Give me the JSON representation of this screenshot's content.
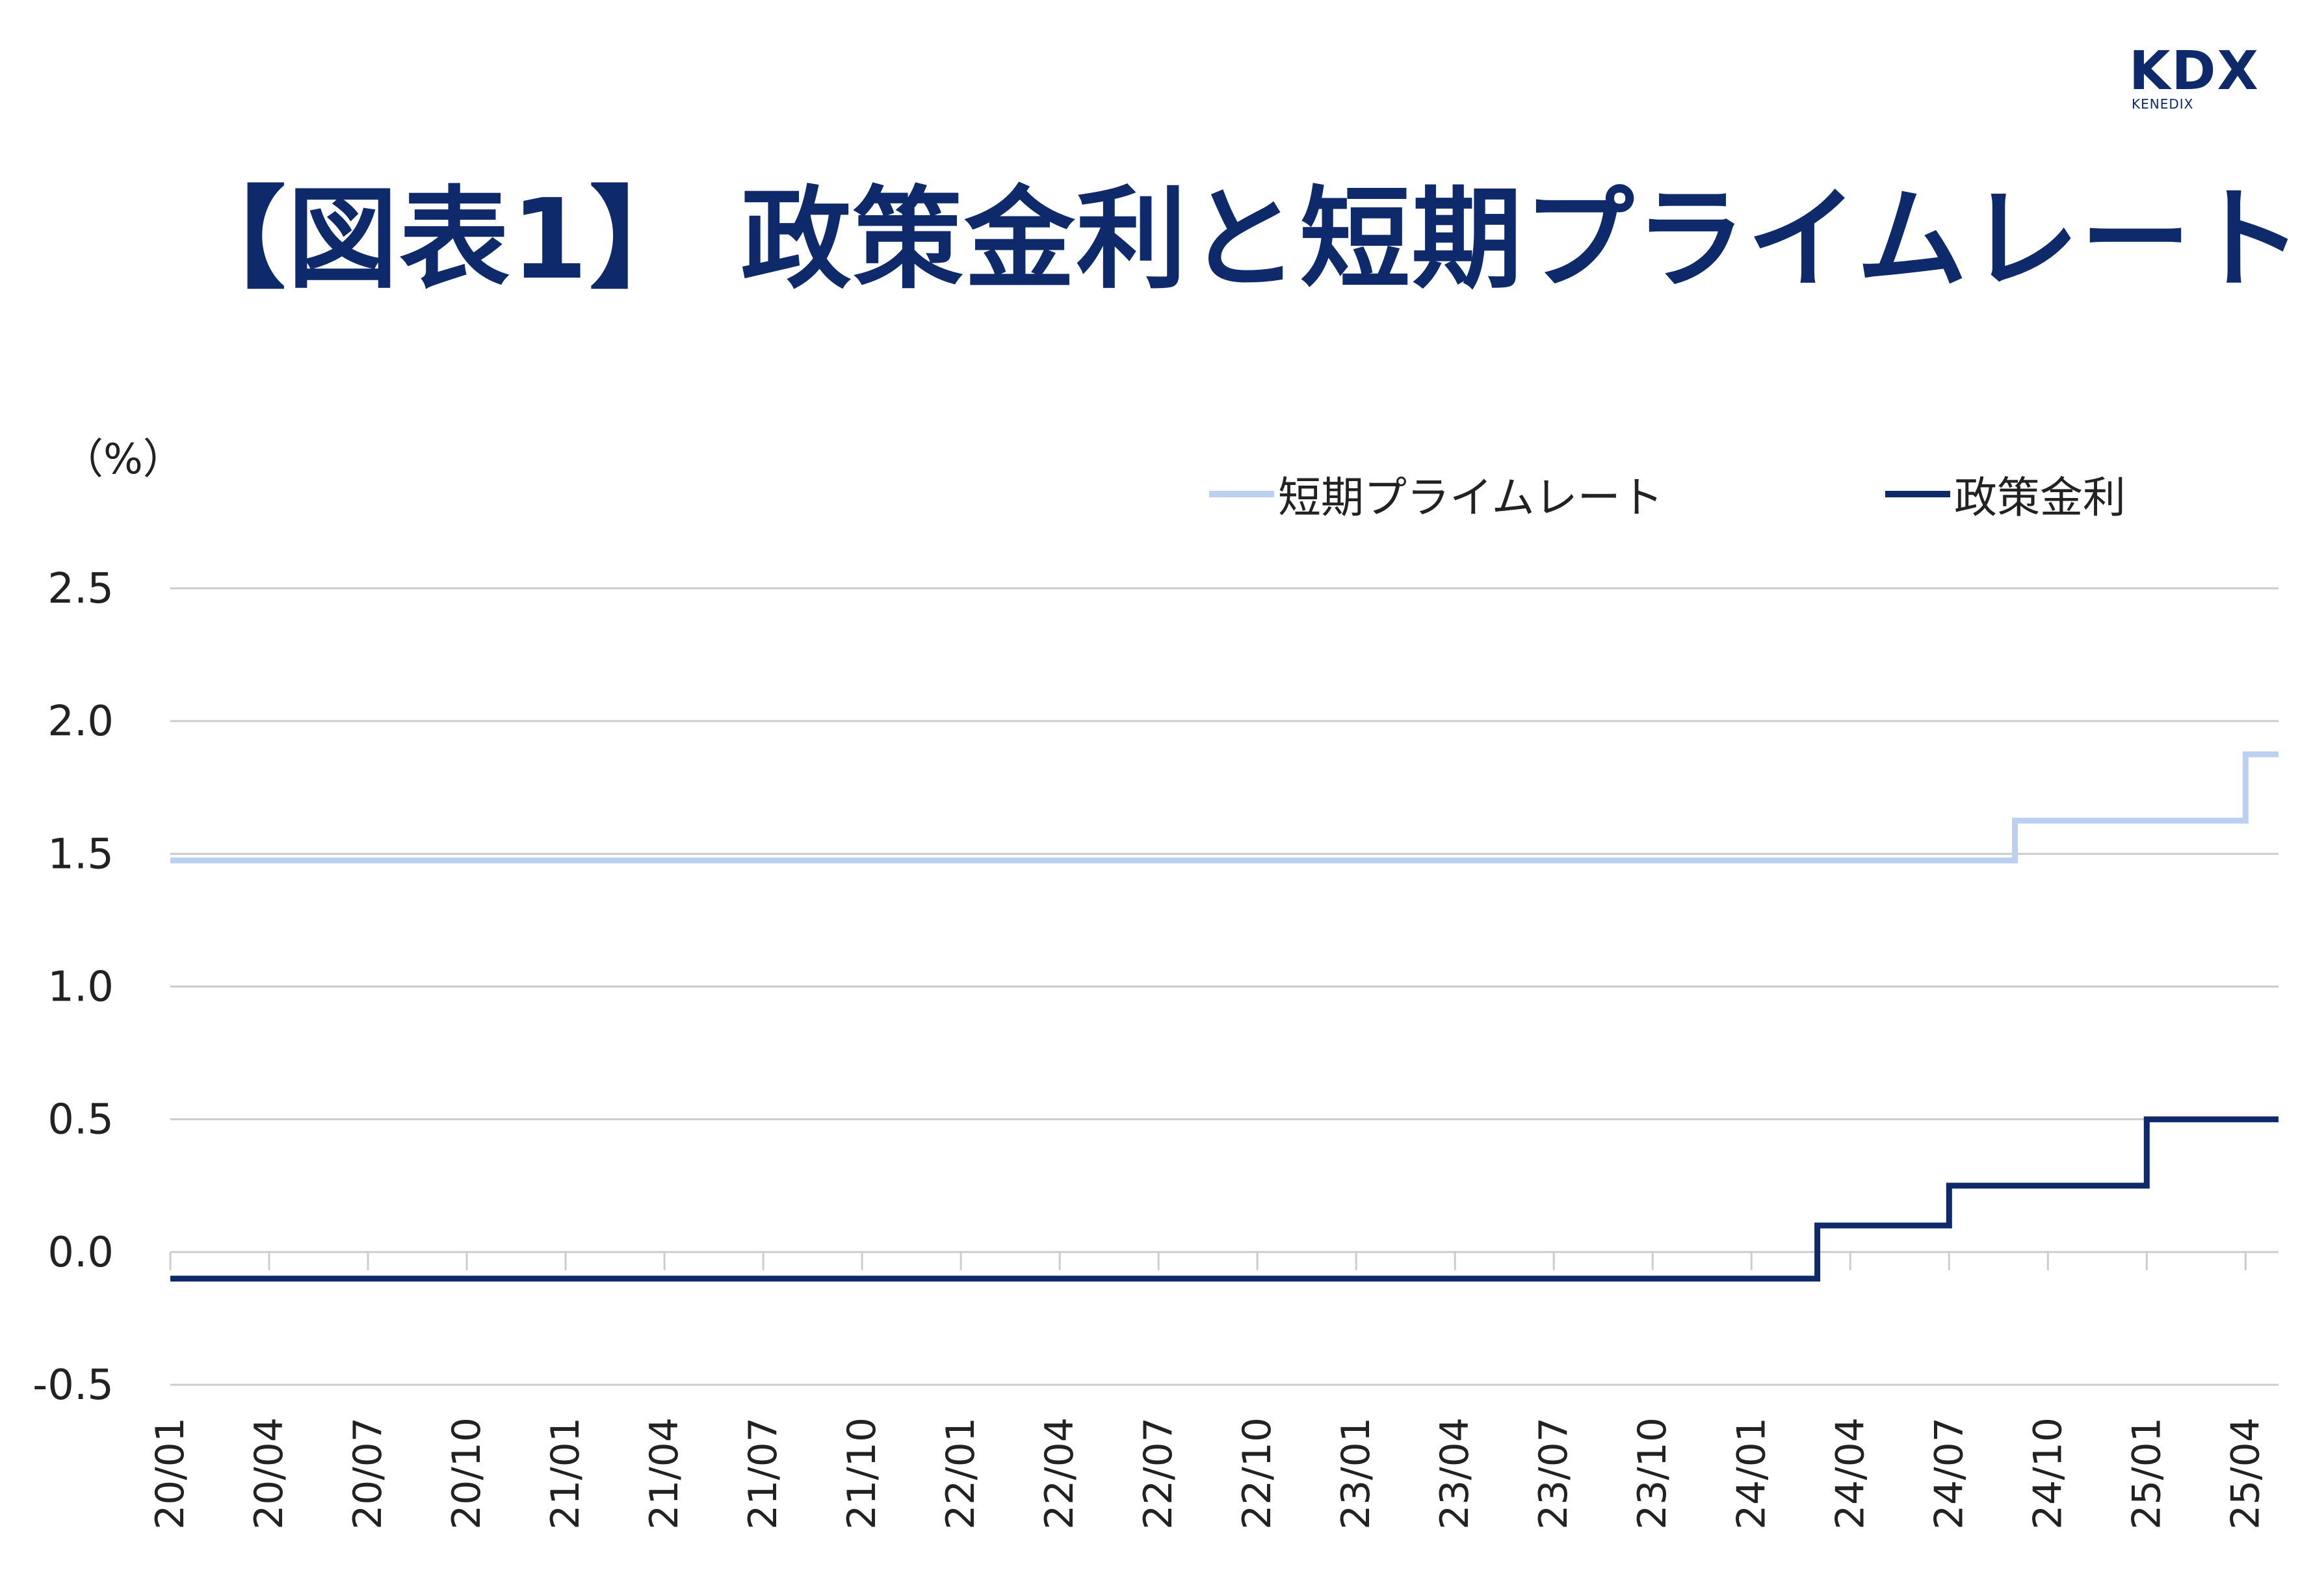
{
  "title": "【図表1】 政策金利と短期プライムレート",
  "logo": {
    "main": "KDX",
    "sub": "KENEDIX"
  },
  "colors": {
    "title": "#0e2a6b",
    "prime_rate": "#bcd0f1",
    "policy_rate": "#0e2a6b",
    "grid": "#cccccc"
  },
  "chart_data": {
    "type": "line",
    "step": true,
    "unit_label": "（%）",
    "ylim": [
      -0.5,
      2.5
    ],
    "yticks": [
      "2.5",
      "2.0",
      "1.5",
      "1.0",
      "0.5",
      "0.0",
      "-0.5"
    ],
    "ytick_values": [
      2.5,
      2.0,
      1.5,
      1.0,
      0.5,
      0.0,
      -0.5
    ],
    "x_tick_labels": [
      "20/01",
      "20/04",
      "20/07",
      "20/10",
      "21/01",
      "21/04",
      "21/07",
      "21/10",
      "22/01",
      "22/04",
      "22/07",
      "22/10",
      "23/01",
      "23/04",
      "23/07",
      "23/10",
      "24/01",
      "24/04",
      "24/07",
      "24/10",
      "25/01",
      "25/04"
    ],
    "x_range": [
      "2020-01",
      "2025-05"
    ],
    "grid": true,
    "legend_position": "top-right",
    "series": [
      {
        "name": "短期プライムレート",
        "color": "#bcd0f1",
        "points": [
          {
            "x": "2020-01",
            "y": 1.475
          },
          {
            "x": "2024-09",
            "y": 1.475
          },
          {
            "x": "2024-09",
            "y": 1.625
          },
          {
            "x": "2025-04",
            "y": 1.625
          },
          {
            "x": "2025-04",
            "y": 1.875
          },
          {
            "x": "2025-05",
            "y": 1.875
          }
        ]
      },
      {
        "name": "政策金利",
        "color": "#0e2a6b",
        "points": [
          {
            "x": "2020-01",
            "y": -0.1
          },
          {
            "x": "2024-03",
            "y": -0.1
          },
          {
            "x": "2024-03",
            "y": 0.1
          },
          {
            "x": "2024-07",
            "y": 0.1
          },
          {
            "x": "2024-07",
            "y": 0.25
          },
          {
            "x": "2025-01",
            "y": 0.25
          },
          {
            "x": "2025-01",
            "y": 0.5
          },
          {
            "x": "2025-05",
            "y": 0.5
          }
        ]
      }
    ]
  }
}
